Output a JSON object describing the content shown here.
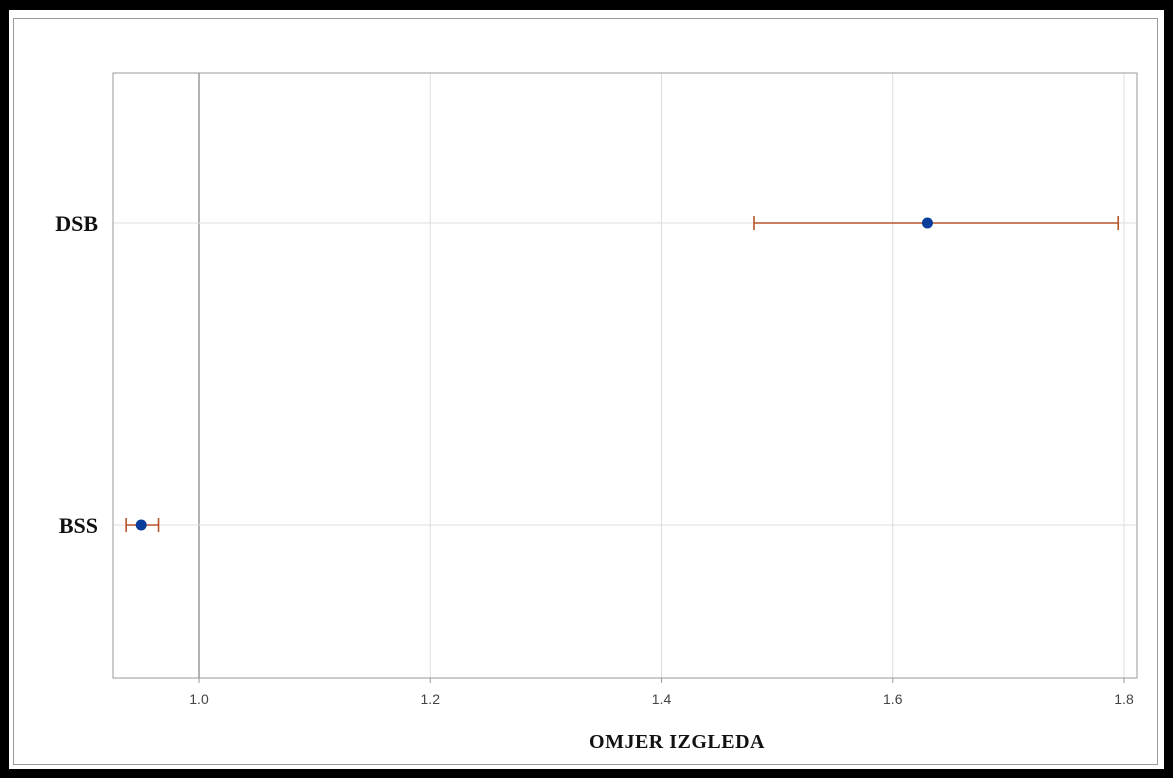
{
  "chart_data": {
    "type": "scatter",
    "subtype": "forest-plot",
    "xlabel": "OMJER IZGLEDA",
    "ylabel": "",
    "xlim": [
      0.925,
      1.81
    ],
    "xticks": [
      1.0,
      1.2,
      1.4,
      1.6,
      1.8
    ],
    "xtick_labels": [
      "1.0",
      "1.2",
      "1.4",
      "1.6",
      "1.8"
    ],
    "reference_line": 1.0,
    "grid": true,
    "categories": [
      "DSB",
      "BSS"
    ],
    "points": [
      {
        "label": "DSB",
        "estimate": 1.63,
        "lower": 1.48,
        "upper": 1.795
      },
      {
        "label": "BSS",
        "estimate": 0.95,
        "lower": 0.937,
        "upper": 0.965
      }
    ],
    "colors": {
      "marker": "#0a3c99",
      "interval": "#b5532a",
      "grid": "#dddddd",
      "reference": "#999999",
      "axis": "#9a9a9a"
    }
  }
}
